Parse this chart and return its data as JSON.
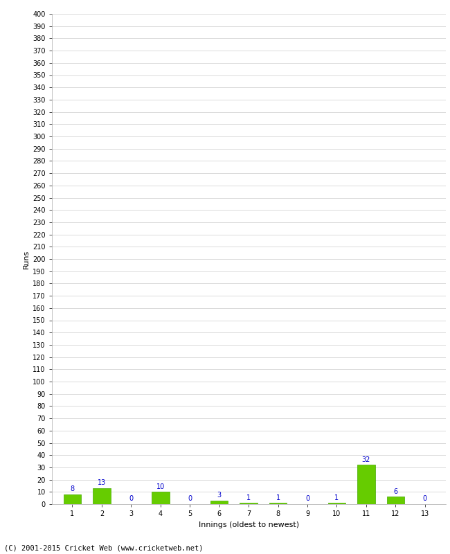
{
  "xlabel": "Innings (oldest to newest)",
  "ylabel": "Runs",
  "categories": [
    1,
    2,
    3,
    4,
    5,
    6,
    7,
    8,
    9,
    10,
    11,
    12,
    13
  ],
  "values": [
    8,
    13,
    0,
    10,
    0,
    3,
    1,
    1,
    0,
    1,
    32,
    6,
    0
  ],
  "bar_color": "#66cc00",
  "bar_edge_color": "#44aa00",
  "ylim": [
    0,
    400
  ],
  "yticks": [
    0,
    10,
    20,
    30,
    40,
    50,
    60,
    70,
    80,
    90,
    100,
    110,
    120,
    130,
    140,
    150,
    160,
    170,
    180,
    190,
    200,
    210,
    220,
    230,
    240,
    250,
    260,
    270,
    280,
    290,
    300,
    310,
    320,
    330,
    340,
    350,
    360,
    370,
    380,
    390,
    400
  ],
  "label_color": "#0000cc",
  "label_fontsize": 7,
  "axis_label_fontsize": 8,
  "tick_fontsize": 7,
  "footer": "(C) 2001-2015 Cricket Web (www.cricketweb.net)",
  "footer_fontsize": 7.5,
  "background_color": "#ffffff",
  "grid_color": "#cccccc"
}
